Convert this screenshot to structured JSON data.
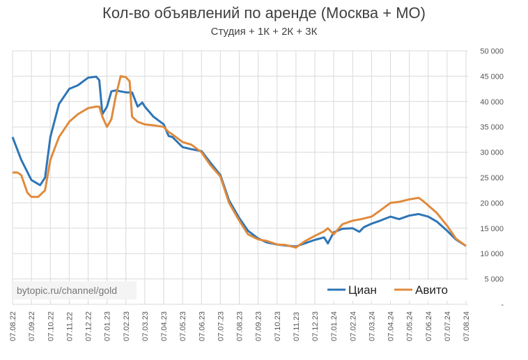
{
  "chart_data": {
    "type": "line",
    "title": "Кол-во объявлений по аренде (Москва + МО)",
    "subtitle": "Студия + 1К + 2К + 3К",
    "xlabel": "",
    "ylabel": "",
    "ylim": [
      0,
      50000
    ],
    "y_ticks": [
      "-",
      "5 000",
      "10 000",
      "15 000",
      "20 000",
      "25 000",
      "30 000",
      "35 000",
      "40 000",
      "45 000",
      "50 000"
    ],
    "x_ticks": [
      "07.08.22",
      "07.09.22",
      "07.10.22",
      "07.11.22",
      "07.12.22",
      "07.01.23",
      "07.02.23",
      "07.03.23",
      "07.04.23",
      "07.05.23",
      "07.06.23",
      "07.07.23",
      "07.08.23",
      "07.09.23",
      "07.10.23",
      "07.11.23",
      "07.12.23",
      "07.01.24",
      "07.02.24",
      "07.03.24",
      "07.04.24",
      "07.05.24",
      "07.06.24",
      "07.07.24",
      "07.08.24"
    ],
    "grid": true,
    "legend_position": "bottom-right",
    "watermark": "bytopic.ru/channel/gold",
    "series": [
      {
        "name": "Циан",
        "color": "#2e75b6",
        "points": [
          [
            "07.08.22",
            33000
          ],
          [
            "21.08.22",
            28500
          ],
          [
            "07.09.22",
            24500
          ],
          [
            "21.09.22",
            23500
          ],
          [
            "29.09.22",
            25000
          ],
          [
            "07.10.22",
            33000
          ],
          [
            "21.10.22",
            39500
          ],
          [
            "07.11.22",
            42500
          ],
          [
            "21.11.22",
            43200
          ],
          [
            "07.12.22",
            44700
          ],
          [
            "20.12.22",
            44900
          ],
          [
            "25.12.22",
            44200
          ],
          [
            "30.12.22",
            37500
          ],
          [
            "07.01.23",
            39000
          ],
          [
            "14.01.23",
            42000
          ],
          [
            "21.01.23",
            42200
          ],
          [
            "07.02.23",
            41800
          ],
          [
            "17.02.23",
            41800
          ],
          [
            "26.02.23",
            39000
          ],
          [
            "03.03.23",
            39800
          ],
          [
            "07.03.23",
            39000
          ],
          [
            "21.03.23",
            37000
          ],
          [
            "07.04.23",
            35500
          ],
          [
            "15.04.23",
            33200
          ],
          [
            "21.04.23",
            33000
          ],
          [
            "07.05.23",
            31000
          ],
          [
            "21.05.23",
            30600
          ],
          [
            "07.06.23",
            30200
          ],
          [
            "21.06.23",
            28000
          ],
          [
            "07.07.23",
            25500
          ],
          [
            "21.07.23",
            20500
          ],
          [
            "07.08.23",
            17000
          ],
          [
            "21.08.23",
            14500
          ],
          [
            "07.09.23",
            13000
          ],
          [
            "21.09.23",
            12200
          ],
          [
            "07.10.23",
            11800
          ],
          [
            "21.10.23",
            11600
          ],
          [
            "07.11.23",
            11400
          ],
          [
            "21.11.23",
            12000
          ],
          [
            "07.12.23",
            12700
          ],
          [
            "22.12.23",
            13200
          ],
          [
            "28.12.23",
            12000
          ],
          [
            "07.01.24",
            14200
          ],
          [
            "21.01.24",
            14900
          ],
          [
            "07.02.24",
            15000
          ],
          [
            "18.02.24",
            14300
          ],
          [
            "25.02.24",
            15200
          ],
          [
            "07.03.24",
            15900
          ],
          [
            "21.03.24",
            16500
          ],
          [
            "07.04.24",
            17300
          ],
          [
            "21.04.24",
            16800
          ],
          [
            "07.05.24",
            17500
          ],
          [
            "22.05.24",
            17800
          ],
          [
            "07.06.24",
            17300
          ],
          [
            "21.06.24",
            16300
          ],
          [
            "07.07.24",
            14500
          ],
          [
            "21.07.24",
            12800
          ],
          [
            "07.08.24",
            11500
          ]
        ]
      },
      {
        "name": "Авито",
        "color": "#e08a3c",
        "points": [
          [
            "07.08.22",
            26000
          ],
          [
            "15.08.22",
            26000
          ],
          [
            "21.08.22",
            25500
          ],
          [
            "31.08.22",
            22000
          ],
          [
            "07.09.22",
            21200
          ],
          [
            "18.09.22",
            21200
          ],
          [
            "29.09.22",
            22500
          ],
          [
            "07.10.22",
            28500
          ],
          [
            "21.10.22",
            33000
          ],
          [
            "07.11.22",
            36000
          ],
          [
            "21.11.22",
            37500
          ],
          [
            "07.12.22",
            38700
          ],
          [
            "20.12.22",
            39000
          ],
          [
            "25.12.22",
            39000
          ],
          [
            "30.12.22",
            37000
          ],
          [
            "07.01.23",
            35000
          ],
          [
            "14.01.23",
            36500
          ],
          [
            "21.01.23",
            41000
          ],
          [
            "29.01.23",
            45000
          ],
          [
            "07.02.23",
            44800
          ],
          [
            "13.02.23",
            44000
          ],
          [
            "17.02.23",
            37000
          ],
          [
            "26.02.23",
            36000
          ],
          [
            "07.03.23",
            35500
          ],
          [
            "21.03.23",
            35300
          ],
          [
            "07.04.23",
            35000
          ],
          [
            "15.04.23",
            34000
          ],
          [
            "21.04.23",
            33500
          ],
          [
            "07.05.23",
            32000
          ],
          [
            "21.05.23",
            31500
          ],
          [
            "07.06.23",
            30000
          ],
          [
            "21.06.23",
            27500
          ],
          [
            "07.07.23",
            25200
          ],
          [
            "21.07.23",
            20000
          ],
          [
            "07.08.23",
            16500
          ],
          [
            "21.08.23",
            13800
          ],
          [
            "07.09.23",
            12800
          ],
          [
            "21.09.23",
            12500
          ],
          [
            "07.10.23",
            11800
          ],
          [
            "21.10.23",
            11700
          ],
          [
            "07.11.23",
            11200
          ],
          [
            "21.11.23",
            12400
          ],
          [
            "07.12.23",
            13500
          ],
          [
            "22.12.23",
            14400
          ],
          [
            "28.12.23",
            15000
          ],
          [
            "07.01.24",
            13800
          ],
          [
            "21.01.24",
            15800
          ],
          [
            "07.02.24",
            16500
          ],
          [
            "21.02.24",
            16800
          ],
          [
            "07.03.24",
            17300
          ],
          [
            "21.03.24",
            18500
          ],
          [
            "07.04.24",
            20000
          ],
          [
            "21.04.24",
            20200
          ],
          [
            "07.05.24",
            20700
          ],
          [
            "22.05.24",
            21000
          ],
          [
            "28.05.24",
            20500
          ],
          [
            "07.06.24",
            19500
          ],
          [
            "21.06.24",
            18000
          ],
          [
            "07.07.24",
            15500
          ],
          [
            "21.07.24",
            13000
          ],
          [
            "07.08.24",
            11500
          ]
        ]
      }
    ]
  }
}
